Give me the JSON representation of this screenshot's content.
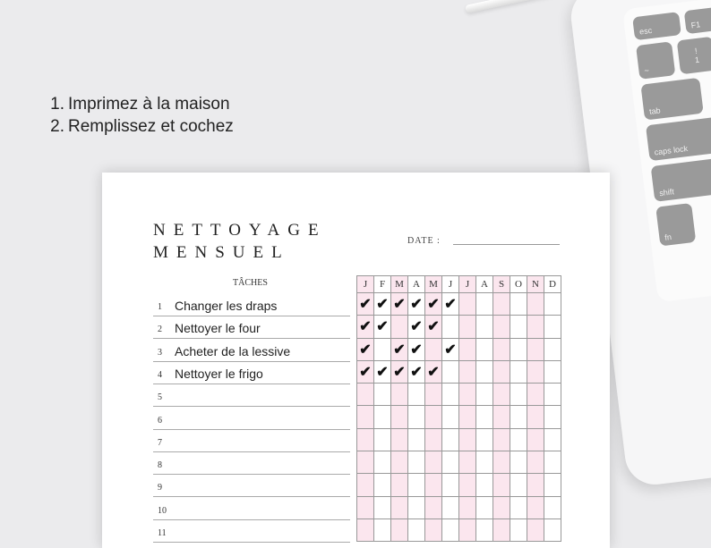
{
  "instructions": [
    {
      "num": "1.",
      "text": "Imprimez à la maison"
    },
    {
      "num": "2.",
      "text": "Remplissez et cochez"
    }
  ],
  "keyboard": {
    "keys": [
      "esc",
      "F1",
      "~",
      "!",
      "1",
      "tab",
      "caps lock",
      "shift",
      "fn"
    ]
  },
  "sheet": {
    "title_line1": "NETTOYAGE",
    "title_line2": "MENSUEL",
    "date_label": "DATE :",
    "tasks_header": "TÂCHES",
    "months": [
      "J",
      "F",
      "M",
      "A",
      "M",
      "J",
      "J",
      "A",
      "S",
      "O",
      "N",
      "D"
    ],
    "tasks": [
      {
        "num": "1",
        "label": "Changer les draps",
        "checks": [
          1,
          1,
          1,
          1,
          1,
          1,
          0,
          0,
          0,
          0,
          0,
          0
        ]
      },
      {
        "num": "2",
        "label": "Nettoyer le four",
        "checks": [
          1,
          1,
          0,
          1,
          1,
          0,
          0,
          0,
          0,
          0,
          0,
          0
        ]
      },
      {
        "num": "3",
        "label": "Acheter de la lessive",
        "checks": [
          1,
          0,
          1,
          1,
          0,
          1,
          0,
          0,
          0,
          0,
          0,
          0
        ]
      },
      {
        "num": "4",
        "label": "Nettoyer le frigo",
        "checks": [
          1,
          1,
          1,
          1,
          1,
          0,
          0,
          0,
          0,
          0,
          0,
          0
        ]
      },
      {
        "num": "5",
        "label": "",
        "checks": []
      },
      {
        "num": "6",
        "label": "",
        "checks": []
      },
      {
        "num": "7",
        "label": "",
        "checks": []
      },
      {
        "num": "8",
        "label": "",
        "checks": []
      },
      {
        "num": "9",
        "label": "",
        "checks": []
      },
      {
        "num": "10",
        "label": "",
        "checks": []
      },
      {
        "num": "11",
        "label": "",
        "checks": []
      }
    ],
    "check_symbol": "✔",
    "pink_color": "#fbe6ee"
  }
}
